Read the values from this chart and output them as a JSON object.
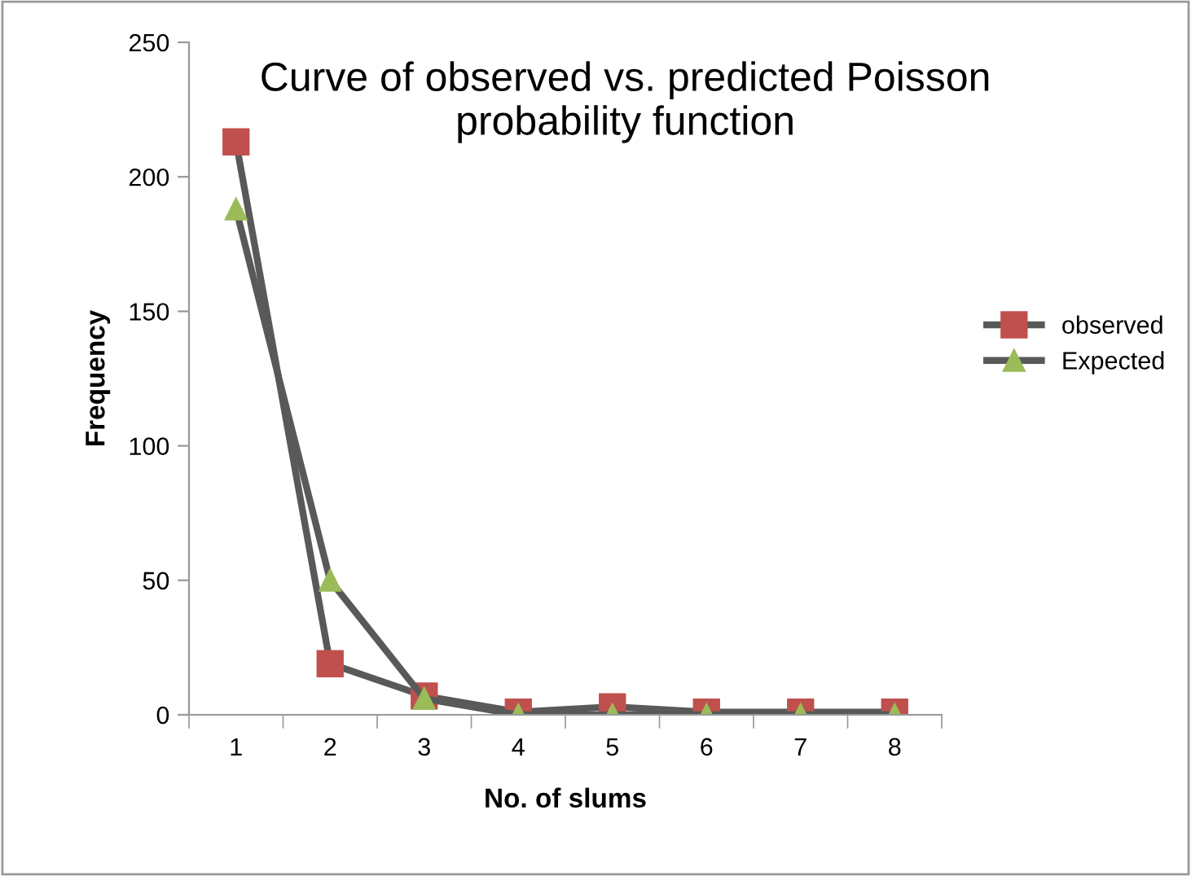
{
  "chart_data": {
    "type": "line",
    "title": "Curve of observed vs. predicted Poisson\nprobability function",
    "xlabel": "No. of slums",
    "ylabel": "Frequency",
    "categories": [
      "1",
      "2",
      "3",
      "4",
      "5",
      "6",
      "7",
      "8"
    ],
    "series": [
      {
        "name": "observed",
        "color": "#c0504d",
        "marker": "square",
        "values": [
          213,
          19,
          7,
          1,
          3,
          1,
          1,
          1
        ]
      },
      {
        "name": "Expected",
        "color": "#9bbb59",
        "marker": "triangle",
        "values": [
          188,
          50,
          6,
          0,
          0,
          0,
          0,
          0
        ]
      }
    ],
    "ylim": [
      0,
      250
    ],
    "yticks": [
      0,
      50,
      100,
      150,
      200,
      250
    ],
    "grid": false,
    "legend": "right",
    "line_style": "solid"
  }
}
